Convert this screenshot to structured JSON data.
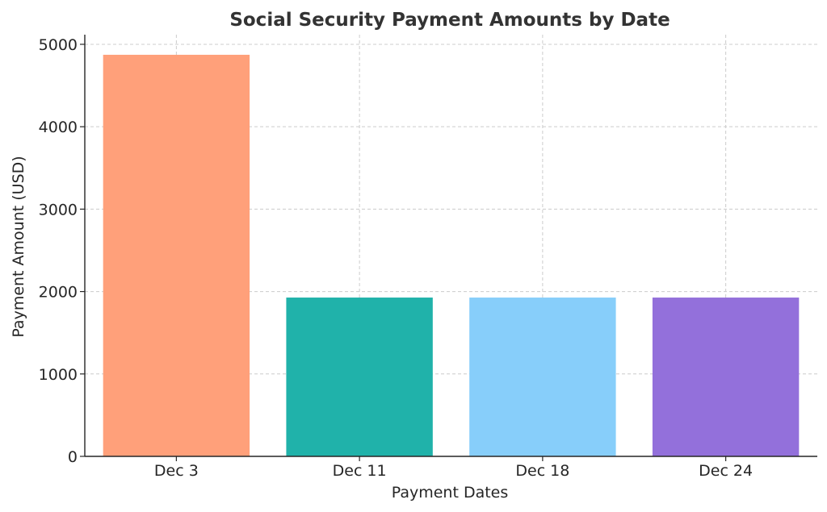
{
  "chart_data": {
    "type": "bar",
    "title": "Social Security Payment Amounts by Date",
    "xlabel": "Payment Dates",
    "ylabel": "Payment Amount (USD)",
    "categories": [
      "Dec 3",
      "Dec 11",
      "Dec 18",
      "Dec 24"
    ],
    "values": [
      4873,
      1927,
      1927,
      1927
    ],
    "colors": [
      "#FFA07A",
      "#20B2AA",
      "#87CEFA",
      "#9370DB"
    ],
    "ylim": [
      0,
      5117
    ],
    "yticks": [
      0,
      1000,
      2000,
      3000,
      4000,
      5000
    ],
    "grid": true,
    "legend": "none"
  }
}
